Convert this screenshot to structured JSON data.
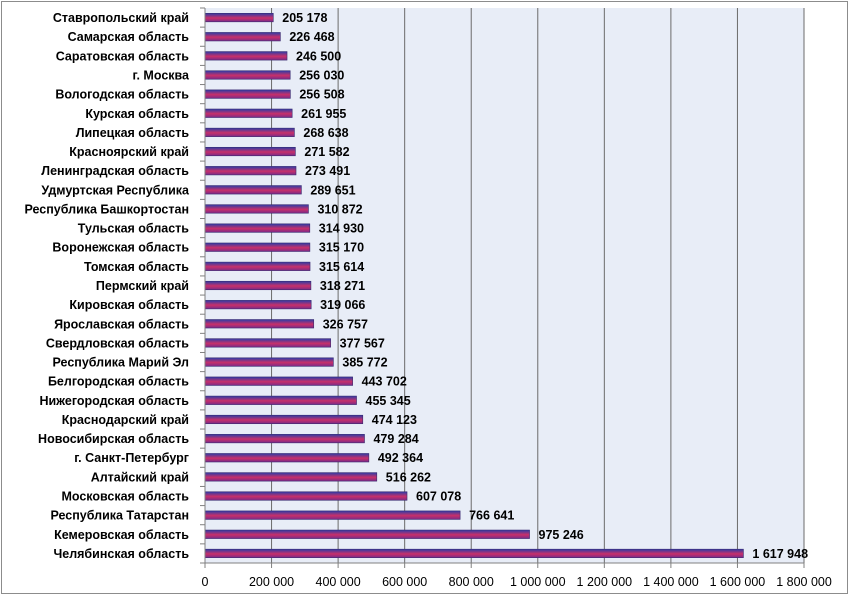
{
  "chart_data": {
    "type": "bar",
    "orientation": "horizontal",
    "categories": [
      "Челябинская область",
      "Кемеровская область",
      "Республика Татарстан",
      "Московская область",
      "Алтайский край",
      "г. Санкт-Петербург",
      "Новосибирская область",
      "Краснодарский край",
      "Нижегородская область",
      "Белгородская область",
      "Республика Марий Эл",
      "Свердловская область",
      "Ярославская область",
      "Кировская область",
      "Пермский край",
      "Томская область",
      "Воронежская область",
      "Тульская область",
      "Республика Башкортостан",
      "Удмуртская Республика",
      "Ленинградская область",
      "Красноярский край",
      "Липецкая область",
      "Курская область",
      "Вологодская область",
      "г. Москва",
      "Саратовская область",
      "Самарская область",
      "Ставропольский край"
    ],
    "values": [
      1617948,
      975246,
      766641,
      607078,
      516262,
      492364,
      479284,
      474123,
      455345,
      443702,
      385772,
      377567,
      326757,
      319066,
      318271,
      315614,
      315170,
      314930,
      310872,
      289651,
      273491,
      271582,
      268638,
      261955,
      256508,
      256030,
      246500,
      226468,
      205178
    ],
    "value_labels": [
      "1 617 948",
      "975 246",
      "766 641",
      "607 078",
      "516 262",
      "492 364",
      "479 284",
      "474 123",
      "455 345",
      "443 702",
      "385 772",
      "377 567",
      "326 757",
      "319 066",
      "318 271",
      "315 614",
      "315 170",
      "314 930",
      "310 872",
      "289 651",
      "273 491",
      "271 582",
      "268 638",
      "261 955",
      "256 508",
      "256 030",
      "246 500",
      "226 468",
      "205 178"
    ],
    "x_ticks": [
      0,
      200000,
      400000,
      600000,
      800000,
      1000000,
      1200000,
      1400000,
      1600000,
      1800000
    ],
    "x_tick_labels": [
      "0",
      "200 000",
      "400 000",
      "600 000",
      "800 000",
      "1 000 000",
      "1 200 000",
      "1 400 000",
      "1 600 000",
      "1 800 000"
    ],
    "xlim": [
      0,
      1800000
    ],
    "title": "",
    "xlabel": "",
    "ylabel": "",
    "grid": "vertical major gridlines",
    "legend": "none",
    "colors": {
      "plot_background": "#e8edf7",
      "gridline": "#6b6b6b",
      "bar_top": "#2c3ca8",
      "bar_mid": "#c8306a",
      "bar_bottom": "#7a2a88",
      "bar_outline": "#3a2a70",
      "axis": "#808080"
    }
  }
}
